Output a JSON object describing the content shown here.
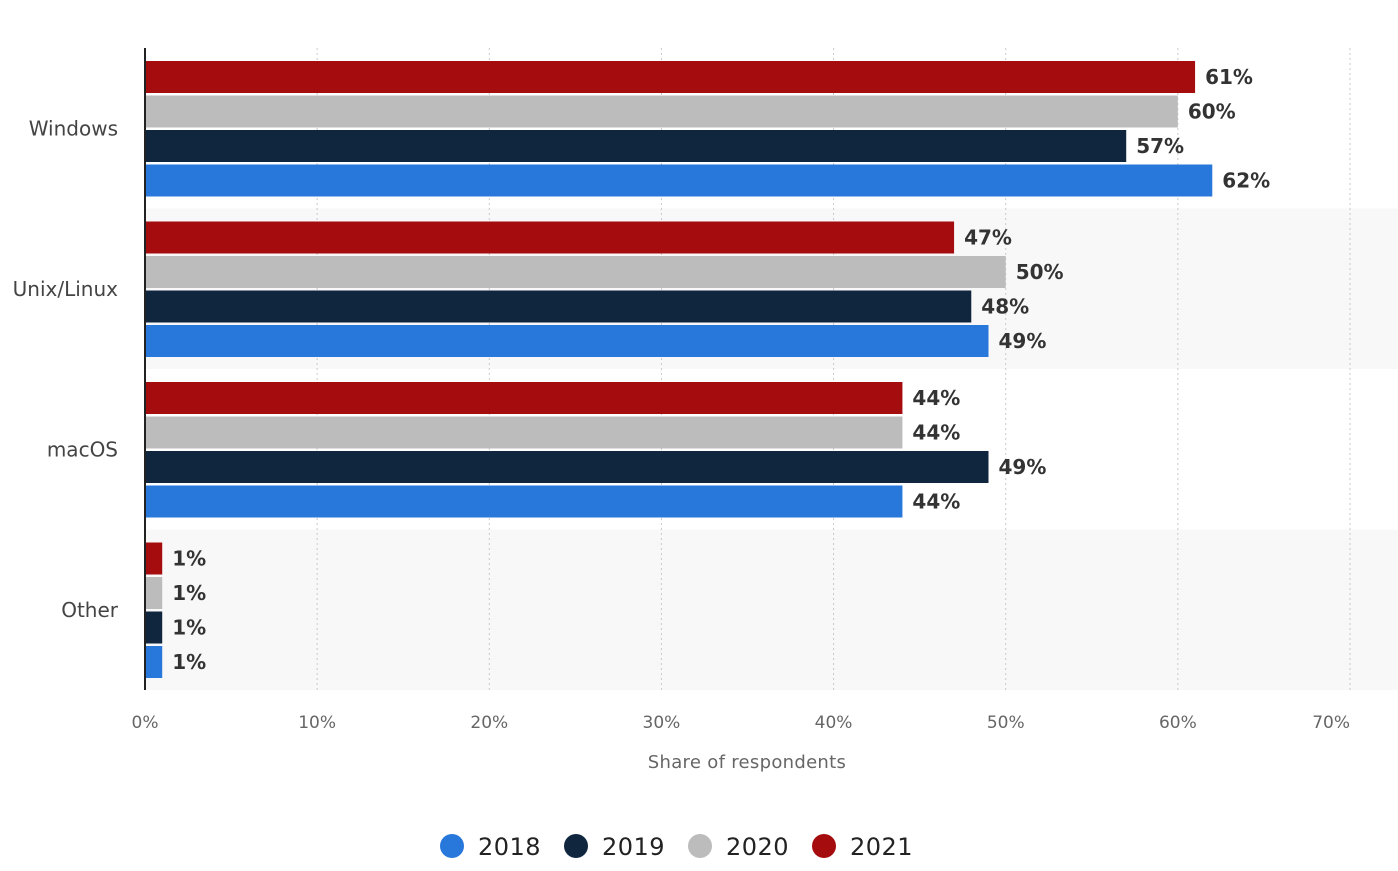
{
  "chart_data": {
    "type": "bar",
    "orientation": "horizontal",
    "categories": [
      "Windows",
      "Unix/Linux",
      "macOS",
      "Other"
    ],
    "series": [
      {
        "name": "2021",
        "color": "#a50c0e",
        "values": [
          61,
          47,
          44,
          1
        ],
        "labels": [
          "61%",
          "47%",
          "44%",
          "1%"
        ]
      },
      {
        "name": "2020",
        "color": "#bcbcbc",
        "values": [
          60,
          50,
          44,
          1
        ],
        "labels": [
          "60%",
          "50%",
          "44%",
          "1%"
        ]
      },
      {
        "name": "2019",
        "color": "#10263e",
        "values": [
          57,
          48,
          49,
          1
        ],
        "labels": [
          "57%",
          "48%",
          "49%",
          "1%"
        ]
      },
      {
        "name": "2018",
        "color": "#2877db",
        "values": [
          62,
          49,
          44,
          1
        ],
        "labels": [
          "62%",
          "49%",
          "44%",
          "1%"
        ]
      }
    ],
    "xlabel": "Share of respondents",
    "ylabel": "",
    "xlim": [
      0,
      70
    ],
    "ticks": [
      0,
      10,
      20,
      30,
      40,
      50,
      60,
      70
    ],
    "tick_labels": [
      "0%",
      "10%",
      "20%",
      "30%",
      "40%",
      "50%",
      "60%",
      "70%"
    ],
    "grid": true,
    "legend": {
      "position": "bottom-center",
      "order": [
        "2018",
        "2019",
        "2020",
        "2021"
      ]
    }
  }
}
